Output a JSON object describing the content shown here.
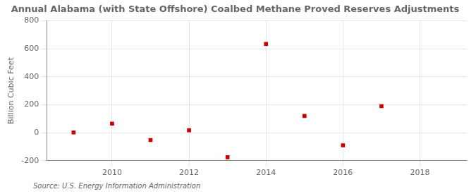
{
  "chart_data": {
    "type": "scatter",
    "title": "Annual Alabama (with State Offshore) Coalbed Methane Proved Reserves Adjustments",
    "ylabel": "Billion Cubic Feet",
    "annotations": [
      "Source: U.S. Energy Information Administration"
    ],
    "x": [
      2009,
      2010,
      2011,
      2012,
      2013,
      2014,
      2015,
      2016,
      2017
    ],
    "values": [
      2,
      65,
      -52,
      18,
      -175,
      635,
      120,
      -90,
      190
    ],
    "color": "#cc0000",
    "marker": "square",
    "xlim": [
      2008.3,
      2019.2
    ],
    "xticks": [
      2010,
      2012,
      2014,
      2016,
      2018
    ],
    "ylim": [
      -200,
      800
    ],
    "yticks": [
      -200,
      0,
      200,
      400,
      600,
      800
    ],
    "grid": true
  }
}
